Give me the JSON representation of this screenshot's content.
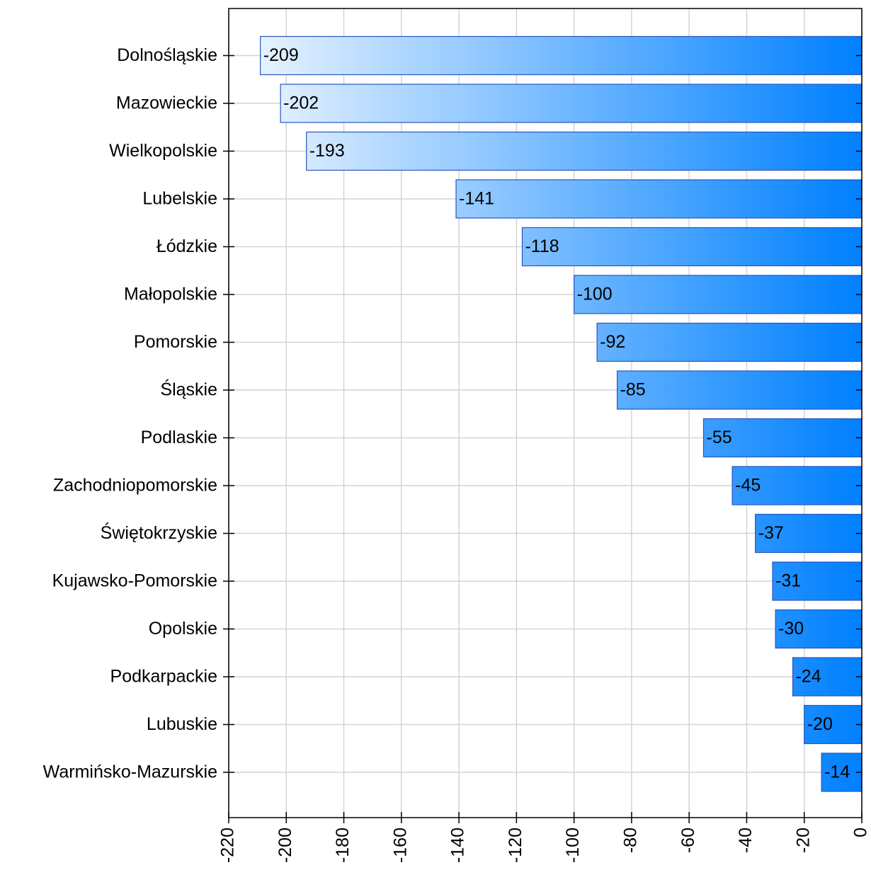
{
  "chart_data": {
    "type": "barh",
    "categories": [
      "Dolnośląskie",
      "Mazowieckie",
      "Wielkopolskie",
      "Lubelskie",
      "Łódzkie",
      "Małopolskie",
      "Pomorskie",
      "Śląskie",
      "Podlaskie",
      "Zachodniopomorskie",
      "Świętokrzyskie",
      "Kujawsko-Pomorskie",
      "Opolskie",
      "Podkarpackie",
      "Lubuskie",
      "Warmińsko-Mazurskie"
    ],
    "values": [
      -209,
      -202,
      -193,
      -141,
      -118,
      -100,
      -92,
      -85,
      -55,
      -45,
      -37,
      -31,
      -30,
      -24,
      -20,
      -14
    ],
    "color": "#0080ff",
    "xlim": [
      -220,
      0
    ],
    "xticks": [
      -220,
      -200,
      -180,
      -160,
      -140,
      -120,
      -100,
      -80,
      -60,
      -40,
      -20,
      0
    ],
    "grid": true
  }
}
